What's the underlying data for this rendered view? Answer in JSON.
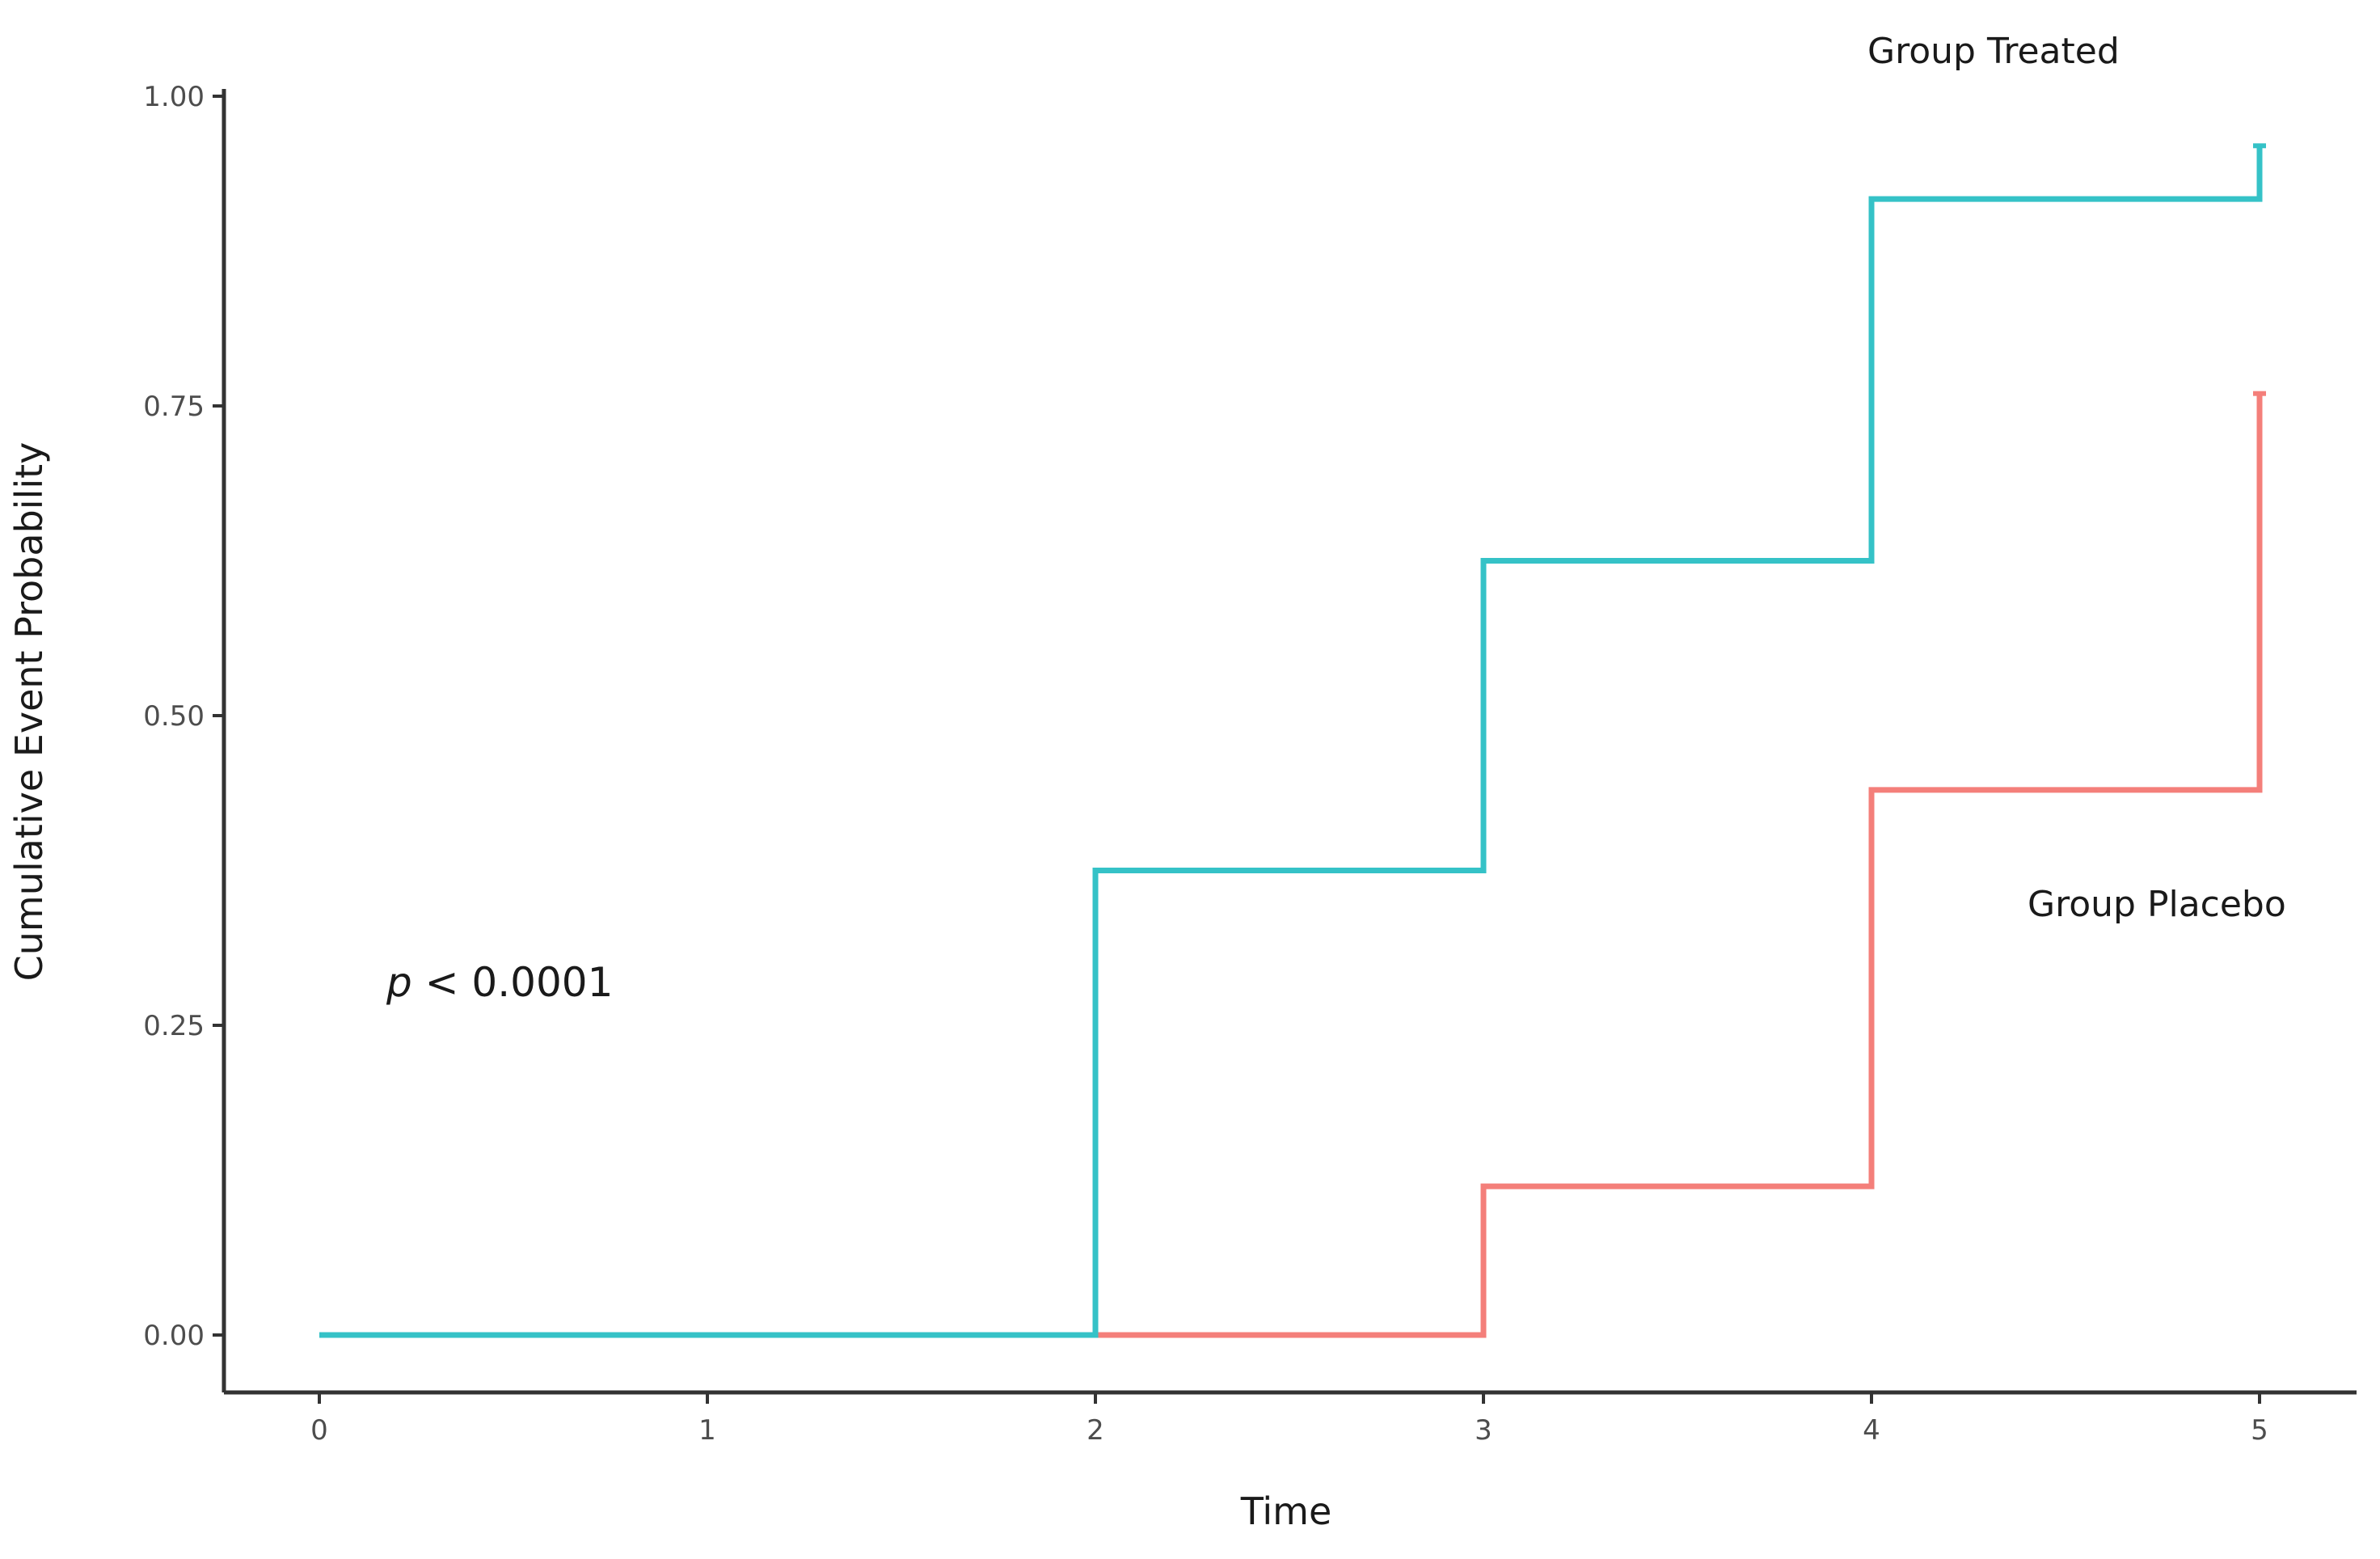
{
  "chart_data": {
    "type": "line",
    "step": true,
    "xlabel": "Time",
    "ylabel": "Cumulative Event Probability",
    "xlim": [
      0,
      5
    ],
    "ylim": [
      0,
      1
    ],
    "x_ticks": [
      0,
      1,
      2,
      3,
      4,
      5
    ],
    "x_tick_labels": [
      "0",
      "1",
      "2",
      "3",
      "4",
      "5"
    ],
    "y_ticks": [
      0,
      0.25,
      0.5,
      0.75,
      1.0
    ],
    "y_tick_labels": [
      "0.00",
      "0.25",
      "0.50",
      "0.75",
      "1.00"
    ],
    "grid": false,
    "annotations": {
      "treated_label": "Group Treated",
      "placebo_label": "Group Placebo",
      "p_value_symbol": "p",
      "p_value_text": " < 0.0001"
    },
    "series": [
      {
        "color": "#35c2c7",
        "x": [
          0,
          2,
          3,
          4,
          5
        ],
        "y": [
          0,
          0.375,
          0.625,
          0.917,
          0.96
        ]
      },
      {
        "color": "#f47f7a",
        "x": [
          0,
          2,
          3,
          4,
          5
        ],
        "y": [
          0,
          0,
          0.12,
          0.44,
          0.76
        ]
      }
    ]
  }
}
